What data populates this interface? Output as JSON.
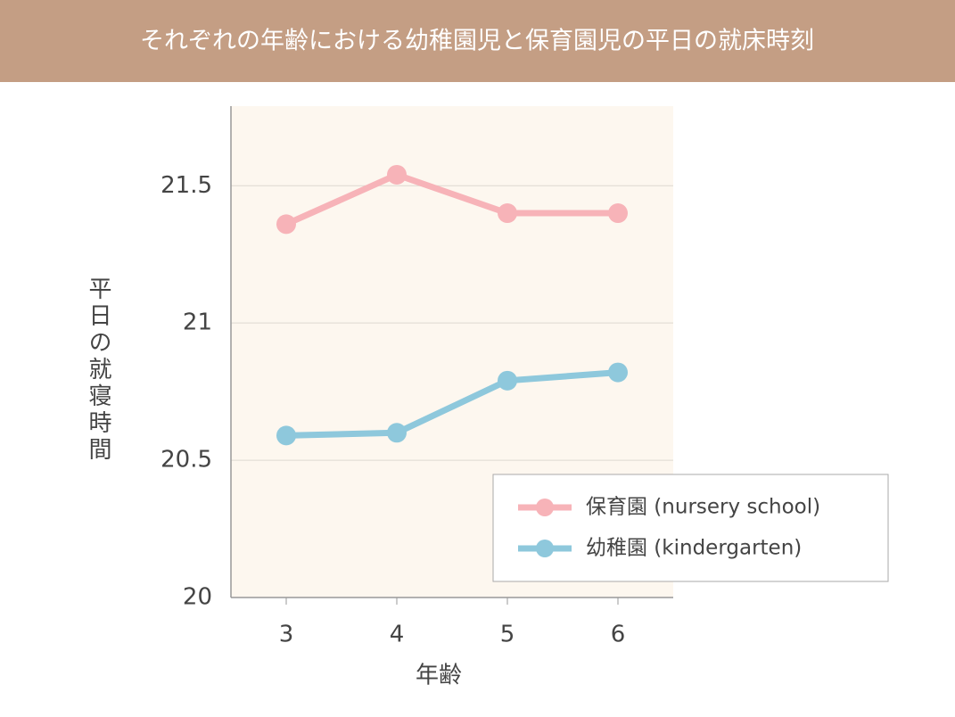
{
  "chart_data": {
    "type": "line",
    "title": "それぞれの年齢における幼稚園児と保育園児の平日の就床時刻",
    "x_label": "年齢",
    "y_label": "平日の就寝時間",
    "categories": [
      "3",
      "4",
      "5",
      "6"
    ],
    "series": [
      {
        "name": "保育園 (nursery school)",
        "color": "#f7b3b8",
        "values": [
          21.36,
          21.54,
          21.4,
          21.4
        ]
      },
      {
        "name": "幼稚園 (kindergarten)",
        "color": "#8ec8dc",
        "values": [
          20.59,
          20.6,
          20.79,
          20.82
        ]
      }
    ],
    "ylim": [
      20,
      21.79
    ],
    "yticks": [
      20,
      20.5,
      21,
      21.5
    ],
    "grid": true,
    "legend": "lower right"
  }
}
